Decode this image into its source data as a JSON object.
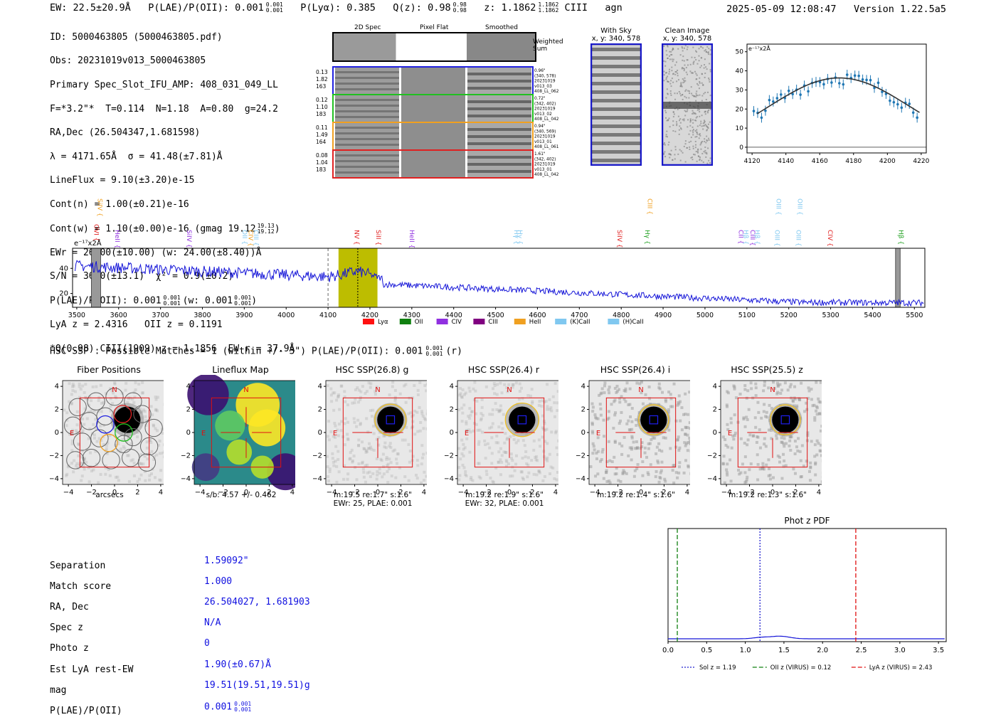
{
  "header": {
    "ew": "EW: 22.5±20.9Å",
    "plae_label": "P(LAE)/P(OII): 0.001",
    "plae_sup": "0.001",
    "plae_sub": "0.001",
    "plya": "P(Lyα): 0.385",
    "qz_label": "Q(z): 0.98",
    "qz_sup": "0.98",
    "qz_sub": "0.98",
    "z_label": "z: 1.1862",
    "z_sup": "1.1862",
    "z_sub": "1.1862",
    "line": "CIII",
    "class": "agn",
    "datetime": "2025-05-09 12:08:47",
    "version": "Version 1.22.5a5"
  },
  "info": {
    "id": "ID: 5000463805 (5000463805.pdf)",
    "obs": "Obs: 20231019v013_5000463805",
    "primary": "Primary Spec_Slot_IFU_AMP: 408_031_049_LL",
    "fparams": "F=*3.2\"*  T=0.114  N=1.18  A=0.80  g=24.2",
    "radec": "RA,Dec (26.504347,1.681598)",
    "lambda": "λ = 4171.65Å  σ = 41.48(±7.81)Å",
    "lineflux": "LineFlux = 9.10(±3.20)e-15",
    "contn": "Cont(n) = 1.00(±0.21)e-16",
    "contw_main": "Cont(w) = 1.10(±0.00)e-16 (gmag 19.12",
    "contw_sup": "19.13",
    "contw_sub": "19.12",
    "contw_end": ")",
    "ewr": "EWr = 26.00(±10.00) (w: 24.00(±8.40))Å",
    "sn": "S/N = 36.0(±13.1)  χ² = 0.9(±0.2)",
    "plae_main": "P(LAE)/P(OII): 0.001",
    "plae_sup": "0.001",
    "plae_sub": "0.001",
    "plae_w": "(w: 0.001",
    "plae_w_sup": "0.001",
    "plae_w_sub": "0.001",
    "plae_end": ")",
    "lya": "LyA z = 2.4316   OII z = 0.1191",
    "ciii": "*Q(0.98) CIII(1909) z = 1.1856  EW r = 37.9Å"
  },
  "spec2d": {
    "col_labels": [
      "2D Spec",
      "Pixel Flat",
      "Smoothed"
    ],
    "weighted_sum": "Weighted Sum",
    "fibers": [
      {
        "left": [
          "0.13",
          "1.82",
          "163"
        ],
        "right": [
          "0.96\"",
          "(340, 578)",
          "20231019",
          "v013_03",
          "408_LL_062"
        ],
        "color": "#2020e0"
      },
      {
        "left": [
          "0.12",
          "1.10",
          "183"
        ],
        "right": [
          "0.72\"",
          "(342, 402)",
          "20231019",
          "v013_02",
          "408_LL_042"
        ],
        "color": "#20c020"
      },
      {
        "left": [
          "0.11",
          "1.49",
          "164"
        ],
        "right": [
          "0.94\"",
          "(340, 569)",
          "20231019",
          "v013_01",
          "408_LL_061"
        ],
        "color": "#f0a020"
      },
      {
        "left": [
          "0.08",
          "1.04",
          "183"
        ],
        "right": [
          "1.61\"",
          "(342, 402)",
          "20231019",
          "v013_01",
          "408_LL_042"
        ],
        "color": "#e02020"
      }
    ]
  },
  "withsky": {
    "title": "With Sky",
    "coords": "x, y: 340, 578"
  },
  "clean": {
    "title": "Clean Image",
    "coords": "x, y: 340, 578"
  },
  "zoom_chart": {
    "unit": "e⁻¹⁷x2Å",
    "xticks": [
      "4120",
      "4140",
      "4160",
      "4180",
      "4200",
      "4220"
    ],
    "yticks": [
      "0",
      "10",
      "20",
      "30",
      "40",
      "50"
    ]
  },
  "spectrum": {
    "unit": "e⁻¹⁷x2Å",
    "yticks": [
      "20",
      "40"
    ],
    "xticks": [
      "3500",
      "3600",
      "3700",
      "3800",
      "3900",
      "4000",
      "4100",
      "4200",
      "4300",
      "4400",
      "4500",
      "4600",
      "4700",
      "4800",
      "4900",
      "5000",
      "5100",
      "5200",
      "5300",
      "5400",
      "5500"
    ],
    "lines": [
      {
        "name": "SiIV",
        "wave": 3545,
        "color": "#f0a020",
        "row": 0
      },
      {
        "name": "OVI",
        "wave": 3537,
        "color": "#e02020",
        "row": 1
      },
      {
        "name": "HeII",
        "wave": 3587,
        "color": "#9030e0",
        "row": 2
      },
      {
        "name": "SiIV",
        "wave": 3758,
        "color": "#9030e0",
        "row": 2
      },
      {
        "name": "OII",
        "wave": 3891,
        "color": "#80c8f0",
        "row": 2
      },
      {
        "name": "CIV",
        "wave": 3905,
        "color": "#f0a020",
        "row": 2
      },
      {
        "name": "CIII",
        "wave": 3918,
        "color": "#80c8f0",
        "row": 2
      },
      {
        "name": "NV",
        "wave": 4158,
        "color": "#e02020",
        "row": 2
      },
      {
        "name": "SiII",
        "wave": 4210,
        "color": "#e02020",
        "row": 2
      },
      {
        "name": "HeII",
        "wave": 4290,
        "color": "#9030e0",
        "row": 2
      },
      {
        "name": "Hγ",
        "wave": 4540,
        "color": "#80c8f0",
        "row": 2
      },
      {
        "name": "Hγ",
        "wave": 4548,
        "color": "#80c8f0",
        "row": 2
      },
      {
        "name": "SiIV",
        "wave": 4786,
        "color": "#e02020",
        "row": 2
      },
      {
        "name": "Hγ",
        "wave": 4852,
        "color": "#20a020",
        "row": 2
      },
      {
        "name": "CIII",
        "wave": 4858,
        "color": "#f0a020",
        "row": 0
      },
      {
        "name": "CII",
        "wave": 5076,
        "color": "#9030e0",
        "row": 2
      },
      {
        "name": "Hβ",
        "wave": 5088,
        "color": "#80c8f0",
        "row": 2
      },
      {
        "name": "CIII",
        "wave": 5104,
        "color": "#9030e0",
        "row": 2
      },
      {
        "name": "Hβ",
        "wave": 5115,
        "color": "#80c8f0",
        "row": 2
      },
      {
        "name": "OIII",
        "wave": 5162,
        "color": "#80c8f0",
        "row": 2
      },
      {
        "name": "OIII",
        "wave": 5166,
        "color": "#80c8f0",
        "row": 0
      },
      {
        "name": "OIII",
        "wave": 5213,
        "color": "#80c8f0",
        "row": 2
      },
      {
        "name": "OIII",
        "wave": 5217,
        "color": "#80c8f0",
        "row": 0
      },
      {
        "name": "CIV",
        "wave": 5289,
        "color": "#e02020",
        "row": 2
      },
      {
        "name": "Hβ",
        "wave": 5458,
        "color": "#20a020",
        "row": 2
      }
    ],
    "legend": [
      {
        "name": "Lyα",
        "color": "#ff1010"
      },
      {
        "name": "OII",
        "color": "#108010"
      },
      {
        "name": "CIV",
        "color": "#9030e0"
      },
      {
        "name": "CIII",
        "color": "#800080"
      },
      {
        "name": "HeII",
        "color": "#f0a020"
      },
      {
        "name": "(K)CaII",
        "color": "#80c8f0"
      },
      {
        "name": "(H)CaII",
        "color": "#80c8f0"
      }
    ]
  },
  "hsc": {
    "heading": "HSC-SSP : Possible Matches = 1 (within +/- 3\")  P(LAE)/P(OII): 0.001",
    "heading_sup": "0.001",
    "heading_sub": "0.001",
    "heading_end": "(r)",
    "panels": [
      {
        "title": "Fiber Positions",
        "caption1": "arcsecs",
        "caption2": ""
      },
      {
        "title": "Lineflux Map",
        "caption1": "s/b: 4.57 +/- 0.462",
        "caption2": ""
      },
      {
        "title": "HSC SSP(26.8) g",
        "caption1": "m:19.5  re:1.7\"  s:1.6\"",
        "caption2": "EWr: 25, PLAE: 0.001"
      },
      {
        "title": "HSC SSP(26.4) r",
        "caption1": "m:19.2  re:1.9\"  s:1.6\"",
        "caption2": "EWr: 32, PLAE: 0.001"
      },
      {
        "title": "HSC SSP(26.4) i",
        "caption1": "m:19.2  re:1.4\"  s:1.6\"",
        "caption2": ""
      },
      {
        "title": "HSC SSP(25.5) z",
        "caption1": "m:19.2  re:1.3\"  s:1.6\"",
        "caption2": ""
      }
    ],
    "axis_ticks": [
      "−4",
      "−2",
      "0",
      "2",
      "4"
    ],
    "compass_n": "N",
    "compass_e": "E"
  },
  "match_table": {
    "labels": [
      "Separation",
      "Match score",
      "RA, Dec",
      "Spec z",
      "Photo z",
      "Est LyA rest-EW",
      "mag",
      "P(LAE)/P(OII)"
    ],
    "values": [
      "1.59092\"",
      "1.000",
      "26.504027, 1.681903",
      "N/A",
      "0",
      "1.90(±0.67)Å",
      "19.51(19.51,19.51)g",
      "0.001"
    ],
    "plae_sup": "0.001",
    "plae_sub": "0.001"
  },
  "photz": {
    "title": "Phot z PDF",
    "xticks": [
      "0.0",
      "0.5",
      "1.0",
      "1.5",
      "2.0",
      "2.5",
      "3.0",
      "3.5"
    ],
    "sol_z": 1.19,
    "oii_z": 0.12,
    "lya_z": 2.43,
    "legend": [
      {
        "name": "Sol z = 1.19",
        "color": "#2020d0",
        "dash": "2,2"
      },
      {
        "name": "OII z (VIRUS) = 0.12",
        "color": "#108010",
        "dash": "6,3"
      },
      {
        "name": "LyA z (VIRUS) = 2.43",
        "color": "#e01010",
        "dash": "6,3"
      }
    ]
  }
}
